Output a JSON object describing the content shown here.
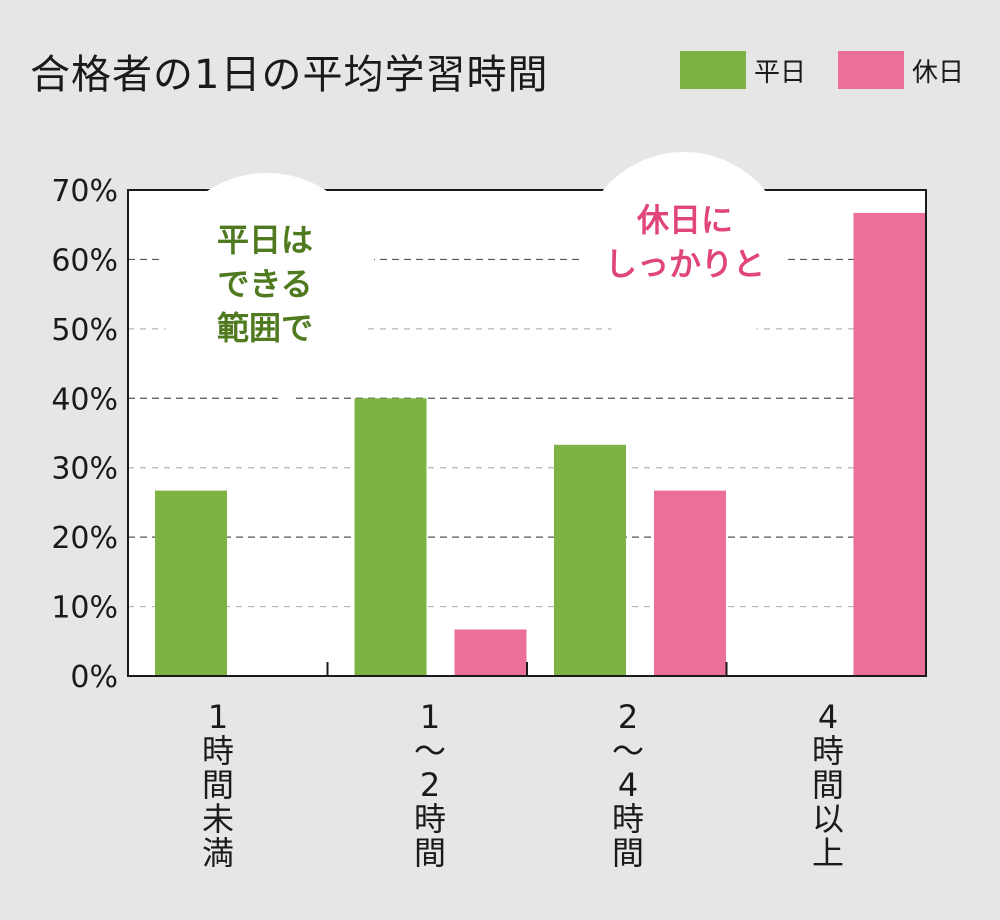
{
  "title": "合格者の1日の平均学習時間",
  "colors": {
    "weekday": "#7cb342",
    "holiday": "#ec6f97",
    "weekday_text": "#4f7a1f",
    "holiday_text": "#e0457b",
    "background": "#e6e6e6"
  },
  "legend": [
    {
      "label": "平日",
      "color": "#7cb342"
    },
    {
      "label": "休日",
      "color": "#ec6f97"
    }
  ],
  "bubbles": {
    "weekday": {
      "lines": [
        "平日は",
        "できる",
        "範囲で"
      ]
    },
    "holiday": {
      "lines": [
        "休日に",
        "しっかりと"
      ]
    }
  },
  "chart_data": {
    "type": "bar",
    "title": "合格者の1日の平均学習時間",
    "categories": [
      "1時間未満",
      "1〜2時間",
      "2〜4時間",
      "4時間以上"
    ],
    "category_lines": [
      [
        "1",
        "時",
        "間",
        "未",
        "満"
      ],
      [
        "1",
        "〜",
        "2",
        "時",
        "間"
      ],
      [
        "2",
        "〜",
        "4",
        "時",
        "間"
      ],
      [
        "4",
        "時",
        "間",
        "以",
        "上"
      ]
    ],
    "series": [
      {
        "name": "平日",
        "values": [
          26.7,
          40.0,
          33.3,
          0
        ]
      },
      {
        "name": "休日",
        "values": [
          0,
          6.7,
          26.7,
          66.7
        ]
      }
    ],
    "ylim": [
      0,
      70
    ],
    "yticks": [
      "0%",
      "10%",
      "20%",
      "30%",
      "40%",
      "50%",
      "60%",
      "70%"
    ],
    "grid": true,
    "legend_position": "top-right"
  }
}
